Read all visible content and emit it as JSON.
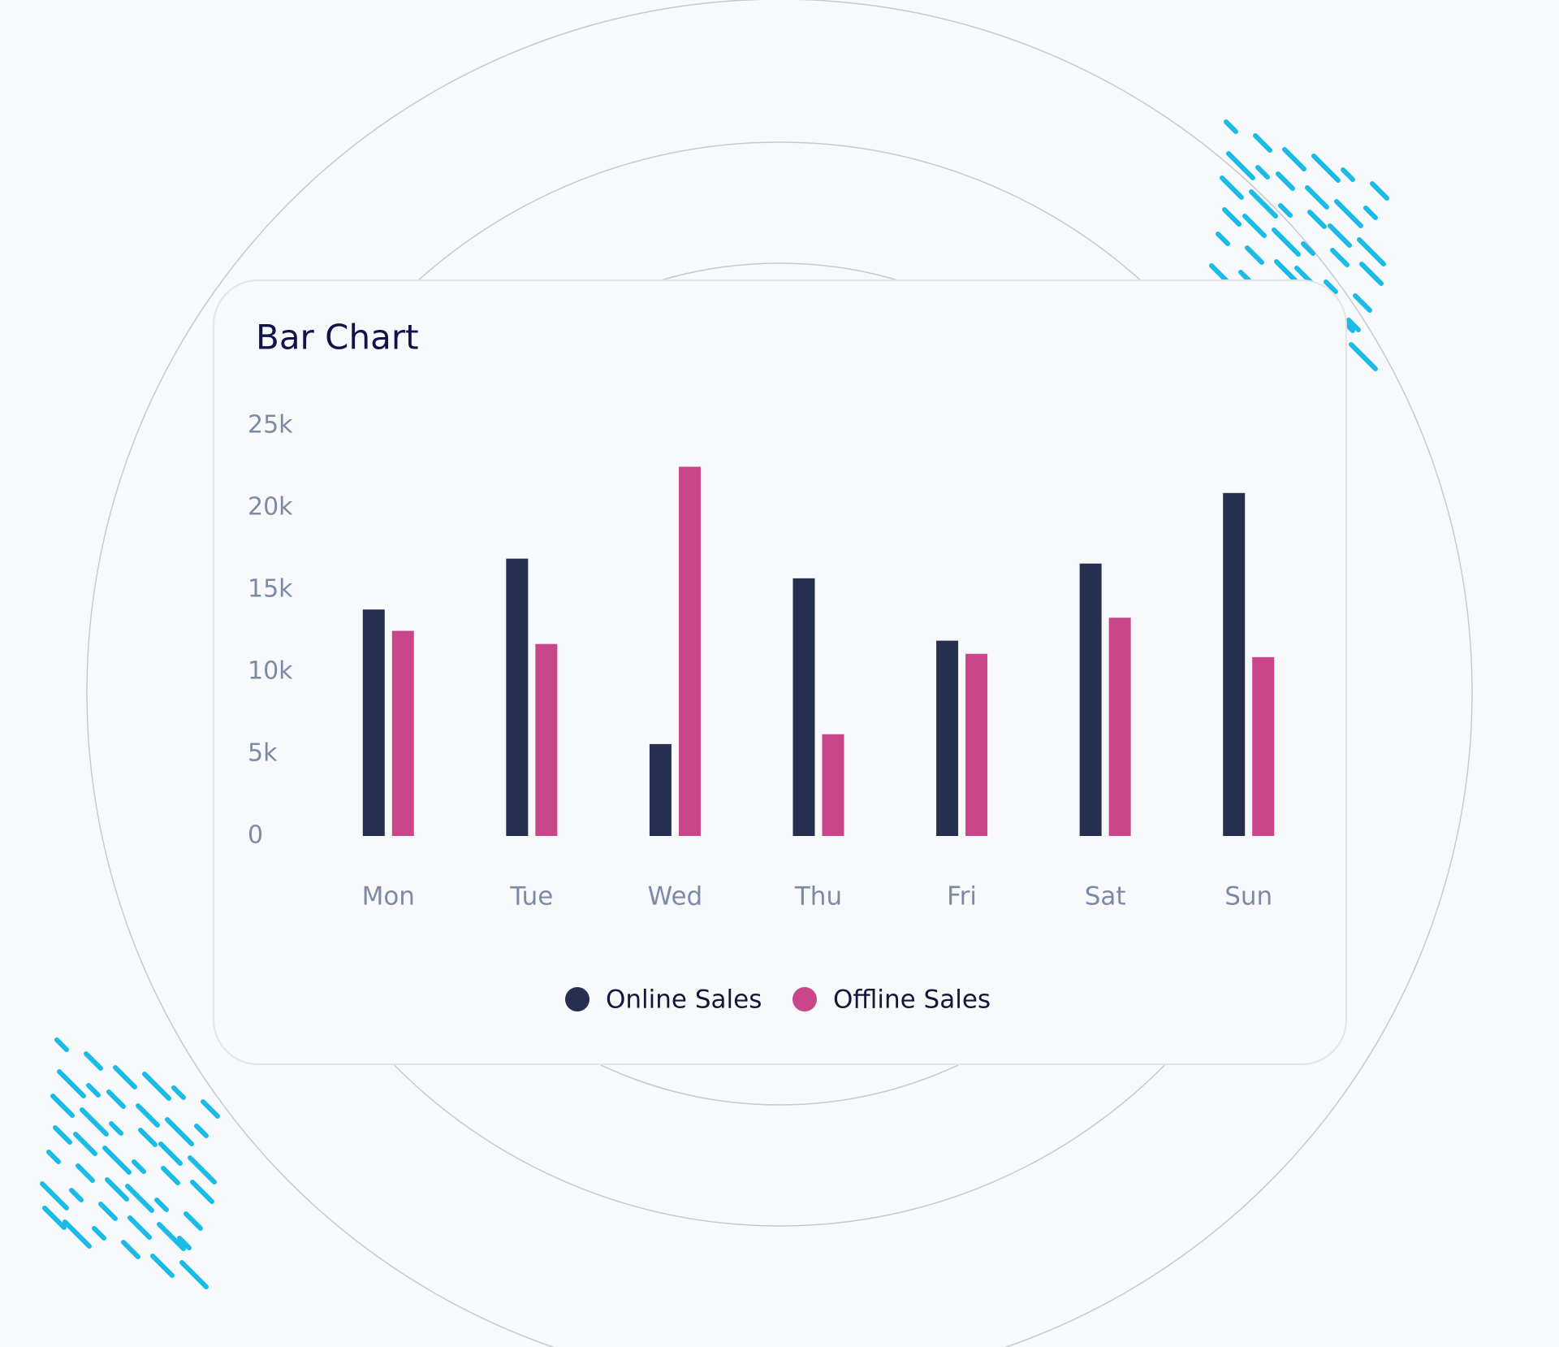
{
  "chart_data": {
    "type": "bar",
    "title": "Bar Chart",
    "categories": [
      "Mon",
      "Tue",
      "Wed",
      "Thu",
      "Fri",
      "Sat",
      "Sun"
    ],
    "series": [
      {
        "name": "Online Sales",
        "color": "#262f4f",
        "values": [
          13800,
          16900,
          5600,
          15700,
          11900,
          16600,
          20900
        ]
      },
      {
        "name": "Offline Sales",
        "color": "#c9468a",
        "values": [
          12500,
          11700,
          22500,
          6200,
          11100,
          13300,
          10900
        ]
      }
    ],
    "ylim": [
      0,
      25000
    ],
    "yticks": [
      {
        "value": 0,
        "label": "0"
      },
      {
        "value": 5000,
        "label": "5k"
      },
      {
        "value": 10000,
        "label": "10k"
      },
      {
        "value": 15000,
        "label": "15k"
      },
      {
        "value": 20000,
        "label": "20k"
      },
      {
        "value": 25000,
        "label": "25k"
      }
    ],
    "grid": false,
    "legend": "bottom"
  }
}
